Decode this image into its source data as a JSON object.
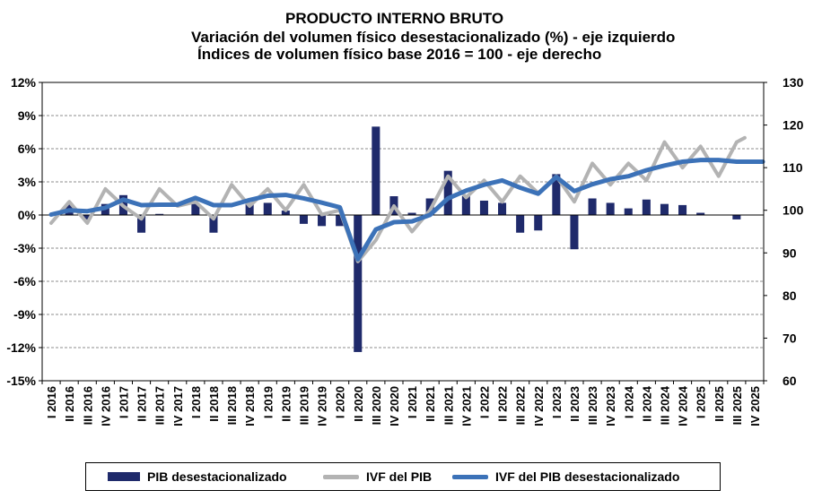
{
  "title": {
    "line1": "PRODUCTO INTERNO BRUTO",
    "line2": "Variación del volumen físico desestacionalizado (%) - eje izquierdo",
    "line3": "Índices de volumen físico base 2016 = 100 - eje derecho"
  },
  "colors": {
    "bars": "#1f2a6b",
    "ivf": "#b3b3b3",
    "ivf_sa": "#3c72b8",
    "grid": "#8c8c8c"
  },
  "chart_data": {
    "type": "bar+line",
    "categories": [
      "I 2016",
      "II 2016",
      "III 2016",
      "IV 2016",
      "I 2017",
      "II 2017",
      "III 2017",
      "IV 2017",
      "I 2018",
      "II 2018",
      "III 2018",
      "IV 2018",
      "I 2019",
      "II 2019",
      "III 2019",
      "IV 2019",
      "I 2020",
      "II 2020",
      "III 2020",
      "IV 2020",
      "I 2021",
      "II 2021",
      "III 2021",
      "IV 2021",
      "I 2022",
      "II 2022",
      "III 2022",
      "IV 2022",
      "I 2023",
      "II 2023",
      "III 2023",
      "IV 2023",
      "I 2024",
      "II 2024",
      "III 2024",
      "IV 2024",
      "I 2025",
      "II 2025",
      "III 2025",
      "IV 2025"
    ],
    "left_axis": {
      "range": [
        -15,
        12
      ],
      "ticks": [
        12,
        9,
        6,
        3,
        0,
        -3,
        -6,
        -9,
        -12,
        -15
      ],
      "tick_labels": [
        "12%",
        "9%",
        "6%",
        "3%",
        "0%",
        "-3%",
        "-6%",
        "-9%",
        "-12%",
        "-15%"
      ]
    },
    "right_axis": {
      "range": [
        60,
        130
      ],
      "ticks": [
        130,
        120,
        110,
        100,
        90,
        80,
        70,
        60
      ],
      "tick_labels": [
        "130",
        "120",
        "110",
        "100",
        "90",
        "80",
        "70",
        "60"
      ]
    },
    "series": [
      {
        "name": "PIB desestacionalizado",
        "type": "bar",
        "axis": "left",
        "values": [
          0.0,
          1.0,
          -0.4,
          1.0,
          1.8,
          -1.6,
          0.1,
          0.0,
          1.0,
          -1.6,
          0.0,
          1.1,
          1.1,
          0.4,
          -0.8,
          -1.0,
          -1.0,
          -12.4,
          8.0,
          1.7,
          0.2,
          1.5,
          4.0,
          1.7,
          1.3,
          1.1,
          -1.6,
          -1.4,
          3.7,
          -3.1,
          1.5,
          1.1,
          0.6,
          1.4,
          1.0,
          0.9,
          0.2,
          0.0,
          -0.4,
          0.0
        ]
      },
      {
        "name": "IVF del PIB",
        "type": "line",
        "axis": "right",
        "values": [
          97,
          102,
          97,
          105,
          101,
          98,
          105,
          101,
          102,
          98,
          106,
          101,
          105,
          100,
          106,
          99,
          100,
          88,
          93,
          101,
          95,
          100,
          108,
          103,
          107,
          102,
          108,
          104,
          108,
          102,
          111,
          106,
          111,
          107,
          116,
          110,
          115,
          108,
          116,
          null
        ],
        "end_partial_value": 117
      },
      {
        "name": "IVF del PIB desestacionalizado",
        "type": "line",
        "axis": "right",
        "values": [
          99,
          100,
          99.8,
          100.6,
          102.5,
          101.2,
          101.3,
          101.3,
          102.9,
          101.2,
          101.2,
          102.4,
          103.4,
          103.6,
          102.8,
          101.8,
          100.7,
          88.5,
          95.5,
          97.2,
          97.4,
          98.9,
          102.8,
          104.6,
          106.0,
          107.0,
          105.3,
          103.9,
          107.8,
          104.5,
          106.1,
          107.3,
          108.0,
          109.4,
          110.5,
          111.4,
          111.8,
          111.8,
          111.4,
          111.4
        ],
        "end_partial_value": 111.4
      }
    ],
    "legend": {
      "position": "bottom",
      "items": [
        "PIB desestacionalizado",
        "IVF del PIB",
        "IVF del PIB desestacionalizado"
      ]
    },
    "grid": "horizontal dashed"
  }
}
